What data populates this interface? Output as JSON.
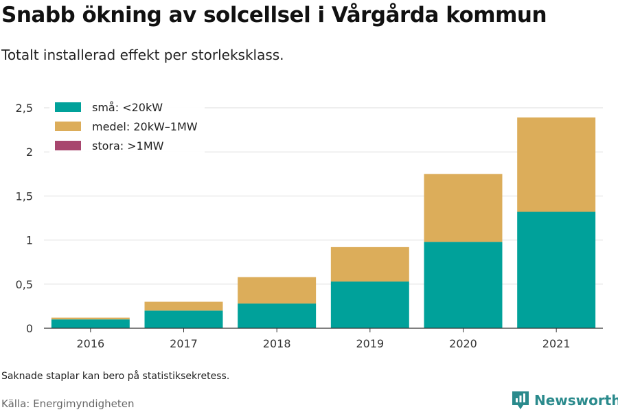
{
  "header": {
    "title": "Snabb ökning av solcellsel i Vårgårda kommun",
    "subtitle": "Totalt installerad effekt per storleksklass."
  },
  "footer": {
    "note": "Saknade staplar kan bero på statistiksekretess.",
    "source": "Källa: Energimyndigheten",
    "brand": "Newsworthy"
  },
  "colors": {
    "sma": "#00a19a",
    "medel": "#dcad5a",
    "stora": "#a8466e",
    "brand": "#2a8a8c"
  },
  "chart_data": {
    "type": "bar",
    "stacked": true,
    "title": "Snabb ökning av solcellsel i Vårgårda kommun",
    "subtitle": "Totalt installerad effekt per storleksklass.",
    "xlabel": "",
    "ylabel": "",
    "categories": [
      "2016",
      "2017",
      "2018",
      "2019",
      "2020",
      "2021"
    ],
    "series": [
      {
        "name": "små: <20kW",
        "color_key": "sma",
        "values": [
          0.1,
          0.2,
          0.28,
          0.53,
          0.98,
          1.32
        ]
      },
      {
        "name": "medel: 20kW–1MW",
        "color_key": "medel",
        "values": [
          0.02,
          0.1,
          0.3,
          0.39,
          0.77,
          1.07
        ]
      },
      {
        "name": "stora: >1MW",
        "color_key": "stora",
        "values": [
          0,
          0,
          0,
          0,
          0,
          0
        ]
      }
    ],
    "ylim": [
      0,
      2.5
    ],
    "yticks": [
      0,
      0.5,
      1,
      1.5,
      2,
      2.5
    ],
    "ytick_labels": [
      "0",
      "0,5",
      "1",
      "1,5",
      "2",
      "2,5"
    ],
    "grid": true,
    "legend_position": "top-left"
  }
}
